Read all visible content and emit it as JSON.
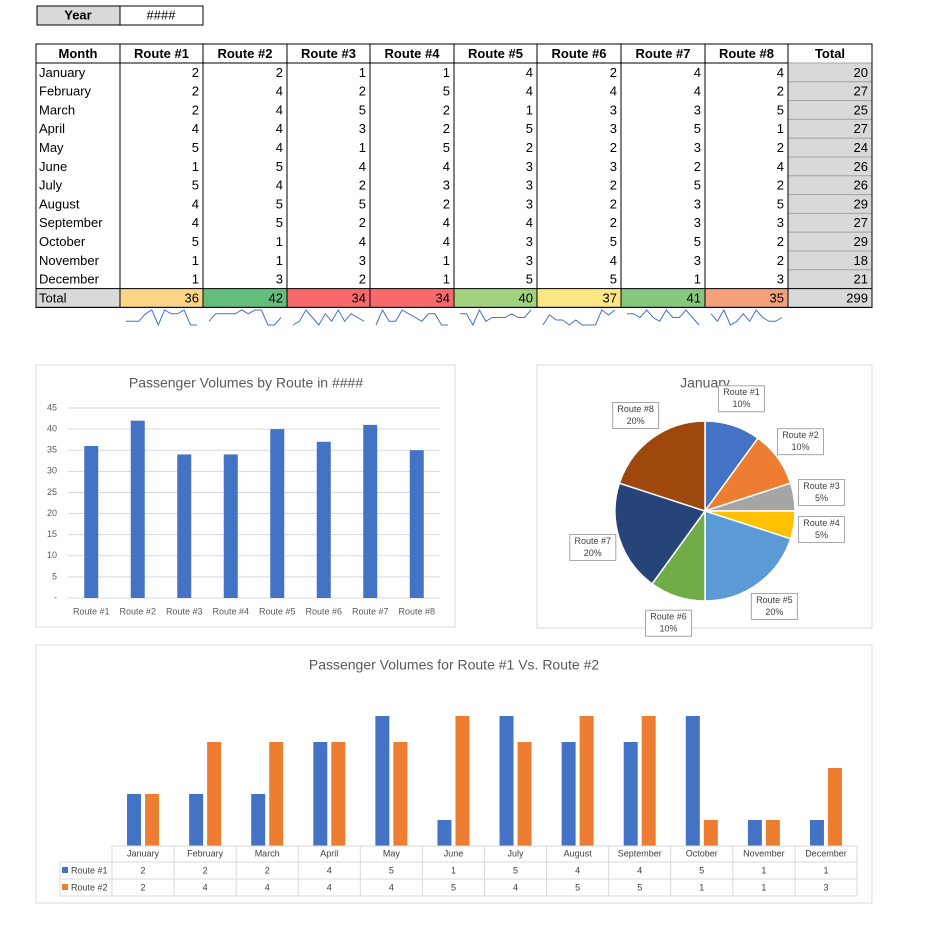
{
  "year": {
    "label": "Year",
    "value": "####"
  },
  "table": {
    "header": [
      "Month",
      "Route #1",
      "Route #2",
      "Route #3",
      "Route #4",
      "Route #5",
      "Route #6",
      "Route #7",
      "Route #8",
      "Total"
    ],
    "rows": [
      {
        "month": "January",
        "values": [
          2,
          2,
          1,
          1,
          4,
          2,
          4,
          4
        ],
        "total": 20
      },
      {
        "month": "February",
        "values": [
          2,
          4,
          2,
          5,
          4,
          4,
          4,
          2
        ],
        "total": 27
      },
      {
        "month": "March",
        "values": [
          2,
          4,
          5,
          2,
          1,
          3,
          3,
          5
        ],
        "total": 25
      },
      {
        "month": "April",
        "values": [
          4,
          4,
          3,
          2,
          5,
          3,
          5,
          1
        ],
        "total": 27
      },
      {
        "month": "May",
        "values": [
          5,
          4,
          1,
          5,
          2,
          2,
          3,
          2
        ],
        "total": 24
      },
      {
        "month": "June",
        "values": [
          1,
          5,
          4,
          4,
          3,
          3,
          2,
          4
        ],
        "total": 26
      },
      {
        "month": "July",
        "values": [
          5,
          4,
          2,
          3,
          3,
          2,
          5,
          2
        ],
        "total": 26
      },
      {
        "month": "August",
        "values": [
          4,
          5,
          5,
          2,
          3,
          2,
          3,
          5
        ],
        "total": 29
      },
      {
        "month": "September",
        "values": [
          4,
          5,
          2,
          4,
          4,
          2,
          3,
          3
        ],
        "total": 27
      },
      {
        "month": "October",
        "values": [
          5,
          1,
          4,
          4,
          3,
          5,
          5,
          2
        ],
        "total": 29
      },
      {
        "month": "November",
        "values": [
          1,
          1,
          3,
          1,
          3,
          4,
          3,
          2
        ],
        "total": 18
      },
      {
        "month": "December",
        "values": [
          1,
          3,
          2,
          1,
          5,
          5,
          1,
          3
        ],
        "total": 21
      }
    ],
    "totals": {
      "label": "Total",
      "values": [
        36,
        42,
        34,
        34,
        40,
        37,
        41,
        35
      ],
      "total": 299,
      "colors": [
        "#fad684",
        "#63be7b",
        "#f8696b",
        "#f8696b",
        "#a2d17f",
        "#fbe683",
        "#84c77d",
        "#f4a07a"
      ]
    },
    "sparkline_color": "#4472c4"
  },
  "chart_data": [
    {
      "type": "bar",
      "title": "Passenger Volumes by Route in ####",
      "categories": [
        "Route #1",
        "Route #2",
        "Route #3",
        "Route #4",
        "Route #5",
        "Route #6",
        "Route #7",
        "Route #8"
      ],
      "values": [
        36,
        42,
        34,
        34,
        40,
        37,
        41,
        35
      ],
      "color": "#4472c4",
      "ylim": [
        0,
        45
      ],
      "yticks": [
        {
          "value": 0,
          "label": "-"
        },
        5,
        10,
        15,
        20,
        25,
        30,
        35,
        40,
        45
      ],
      "grid": true
    },
    {
      "type": "pie",
      "title": "January",
      "categories": [
        "Route #1",
        "Route #2",
        "Route #3",
        "Route #4",
        "Route #5",
        "Route #6",
        "Route #7",
        "Route #8"
      ],
      "values": [
        10,
        10,
        5,
        5,
        20,
        10,
        20,
        20
      ],
      "value_labels": [
        "10%",
        "10%",
        "5%",
        "5%",
        "20%",
        "10%",
        "20%",
        "20%"
      ],
      "colors": [
        "#4472c4",
        "#ed7d31",
        "#a5a5a5",
        "#ffc000",
        "#5b9bd5",
        "#70ad47",
        "#264478",
        "#9e480e"
      ]
    },
    {
      "type": "grouped-bar",
      "title": "Passenger Volumes for Route #1 Vs. Route #2",
      "categories": [
        "January",
        "February",
        "March",
        "April",
        "May",
        "June",
        "July",
        "August",
        "September",
        "October",
        "November",
        "December"
      ],
      "series": [
        {
          "name": "Route #1",
          "color": "#4472c4",
          "values": [
            2,
            2,
            2,
            4,
            5,
            1,
            5,
            4,
            4,
            5,
            1,
            1
          ]
        },
        {
          "name": "Route #2",
          "color": "#ed7d31",
          "values": [
            2,
            4,
            4,
            4,
            4,
            5,
            4,
            5,
            5,
            1,
            1,
            3
          ]
        }
      ]
    }
  ]
}
